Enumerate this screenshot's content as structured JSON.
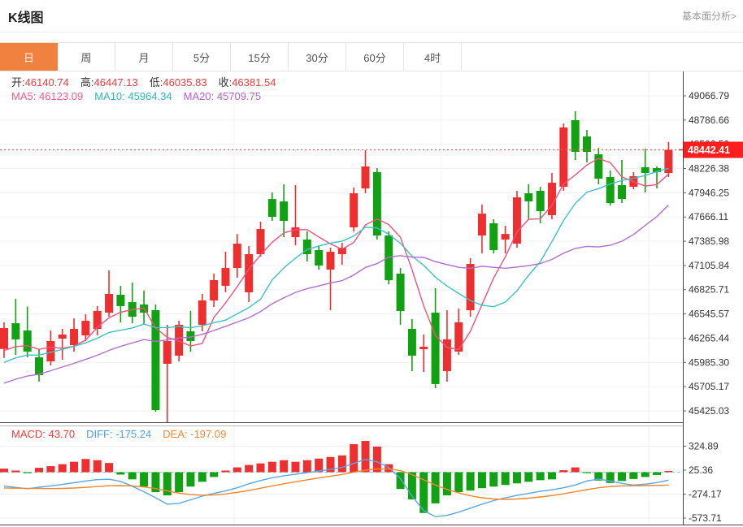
{
  "header": {
    "title": "K线图",
    "link_label": "基本面分析>"
  },
  "tabs": {
    "items": [
      "日",
      "周",
      "月",
      "5分",
      "15分",
      "30分",
      "60分",
      "4时"
    ],
    "selected_index": 0
  },
  "readout": {
    "open_label": "开:",
    "open": "46140.74",
    "high_label": "高:",
    "high": "46447.13",
    "low_label": "低:",
    "low": "46035.83",
    "close_label": "收:",
    "close": "46381.54"
  },
  "ma_legend": {
    "ma5_label": "MA5:",
    "ma5": "46123.09",
    "ma10_label": "MA10:",
    "ma10": "45964.34",
    "ma20_label": "MA20:",
    "ma20": "45709.75"
  },
  "macd_legend": {
    "macd_label": "MACD:",
    "macd": "43.70",
    "diff_label": "DIFF:",
    "diff": "-175.24",
    "dea_label": "DEA:",
    "dea": "-197.09"
  },
  "price_tag": "48442.41",
  "colors": {
    "up": "#ee2f2f",
    "down": "#12a112",
    "ma5": "#f0517e",
    "ma10": "#3bc2c8",
    "ma20": "#b06fce",
    "diff_line": "#5aa7e8",
    "dea_line": "#f2862e",
    "text_red": "#f03b3b",
    "text_blue": "#4f9ee3",
    "text_orange": "#f28a36",
    "ma5_text": "#f45c8c",
    "ma10_text": "#30b8bc",
    "ma20_text": "#b162d2",
    "tag_bg": "#ff1e1e",
    "accent": "#f0813f",
    "grid": "#f0f0f0",
    "axis": "#444444",
    "dotted_price": "#ff5050",
    "macd_zero": "#8fd3e8"
  },
  "chart_data": {
    "type": "candlestick+macd",
    "main": {
      "title": "K线图 (日)",
      "y_tick_labels": [
        "49066.79",
        "48786.66",
        "48506.52",
        "48226.38",
        "47946.25",
        "47666.11",
        "47385.98",
        "47105.84",
        "46825.71",
        "46545.57",
        "46265.44",
        "45985.30",
        "45705.17",
        "45425.03"
      ],
      "y_top_value": 49348,
      "y_bottom_value": 45294,
      "last_price": 48442.41,
      "candles_ohlc": [
        [
          46140.74,
          46447.13,
          46035.83,
          46381.54
        ],
        [
          46438,
          46720,
          46072,
          46251
        ],
        [
          46354,
          46630,
          46044,
          46110
        ],
        [
          46044,
          46138,
          45762,
          45838
        ],
        [
          45997,
          46354,
          45950,
          46232
        ],
        [
          46260,
          46373,
          46016,
          46307
        ],
        [
          46185,
          46495,
          46110,
          46373
        ],
        [
          46297,
          46542,
          46232,
          46466
        ],
        [
          46373,
          46636,
          46297,
          46580
        ],
        [
          46560,
          47048,
          46513,
          46776
        ],
        [
          46767,
          46870,
          46448,
          46636
        ],
        [
          46682,
          46907,
          46438,
          46513
        ],
        [
          46654,
          46814,
          46420,
          46560
        ],
        [
          46589,
          46654,
          45415,
          45434
        ],
        [
          45969,
          46420,
          45293,
          46232
        ],
        [
          46063,
          46466,
          45997,
          46420
        ],
        [
          46345,
          46580,
          46110,
          46232
        ],
        [
          46420,
          46776,
          46345,
          46701
        ],
        [
          46701,
          47011,
          46626,
          46936
        ],
        [
          46870,
          47264,
          46795,
          47076
        ],
        [
          47076,
          47470,
          46964,
          47358
        ],
        [
          46795,
          47330,
          46682,
          47236
        ],
        [
          47236,
          47611,
          47208,
          47527
        ],
        [
          47874,
          47949,
          47621,
          47668
        ],
        [
          47846,
          48043,
          47433,
          47621
        ],
        [
          47433,
          48034,
          47339,
          47546
        ],
        [
          47405,
          47499,
          47151,
          47236
        ],
        [
          47283,
          47330,
          47058,
          47105
        ],
        [
          47058,
          47311,
          46589,
          47264
        ],
        [
          47236,
          47368,
          47113,
          47311
        ],
        [
          47546,
          48006,
          47499,
          47940
        ],
        [
          47996,
          48438,
          47940,
          48250
        ],
        [
          48184,
          48231,
          47405,
          47452
        ],
        [
          47452,
          47499,
          46889,
          46936
        ],
        [
          47011,
          47076,
          46419,
          46579
        ],
        [
          46373,
          46485,
          45884,
          46063
        ],
        [
          46138,
          46307,
          45875,
          46166
        ],
        [
          46560,
          46842,
          45687,
          45735
        ],
        [
          45884,
          46588,
          45762,
          46251
        ],
        [
          46110,
          46607,
          46072,
          46448
        ],
        [
          46588,
          47189,
          46513,
          47123
        ],
        [
          47452,
          47809,
          47245,
          47705
        ],
        [
          47593,
          47640,
          47245,
          47283
        ],
        [
          47405,
          47564,
          47245,
          47470
        ],
        [
          47358,
          47968,
          47311,
          47893
        ],
        [
          47940,
          48043,
          47640,
          47846
        ],
        [
          47968,
          48015,
          47593,
          47733
        ],
        [
          47687,
          48175,
          47640,
          48062
        ],
        [
          48015,
          48748,
          47968,
          48701
        ],
        [
          48785,
          48888,
          48325,
          48419
        ],
        [
          48597,
          48672,
          48297,
          48419
        ],
        [
          48391,
          48466,
          48043,
          48109
        ],
        [
          48128,
          48203,
          47799,
          47827
        ],
        [
          48034,
          48325,
          47827,
          47874
        ],
        [
          48015,
          48184,
          47987,
          48137
        ],
        [
          48241,
          48456,
          47949,
          48175
        ],
        [
          48231,
          48250,
          47996,
          48184
        ],
        [
          48175,
          48532,
          48128,
          48442.41
        ]
      ],
      "ma_periods": [
        5,
        10,
        20
      ],
      "ma_seed_closes": [
        45350,
        45380,
        45420,
        45400,
        45470,
        45520,
        45560,
        45610,
        45650,
        45700,
        45730,
        45780,
        45850,
        45900,
        45980,
        46020,
        46060,
        46050,
        46100
      ]
    },
    "macd": {
      "y_tick_labels": [
        "324.89",
        "25.36",
        "-274.17",
        "-573.71"
      ],
      "hist": [
        44,
        20,
        -12,
        55,
        75,
        100,
        130,
        165,
        150,
        115,
        -30,
        -90,
        -180,
        -250,
        -290,
        -250,
        -180,
        -120,
        -60,
        20,
        60,
        90,
        110,
        130,
        150,
        130,
        150,
        170,
        190,
        210,
        350,
        390,
        320,
        100,
        -210,
        -340,
        -510,
        -390,
        -290,
        -250,
        -230,
        -200,
        -180,
        -160,
        -140,
        -120,
        -100,
        -90,
        25,
        60,
        -10,
        -105,
        -135,
        -110,
        -85,
        -60,
        -35,
        15
      ],
      "diff": [
        -175,
        -190,
        -207,
        -188,
        -172,
        -153,
        -132,
        -110,
        -93,
        -88,
        -115,
        -175,
        -245,
        -320,
        -400,
        -390,
        -345,
        -300,
        -265,
        -235,
        -195,
        -145,
        -105,
        -70,
        -45,
        -25,
        -5,
        15,
        35,
        60,
        110,
        160,
        130,
        60,
        -80,
        -300,
        -480,
        -555,
        -540,
        -500,
        -450,
        -400,
        -355,
        -320,
        -290,
        -265,
        -240,
        -220,
        -195,
        -160,
        -110,
        -85,
        -110,
        -140,
        -160,
        -150,
        -130,
        -100
      ],
      "dea": [
        -197,
        -200,
        -202,
        -204,
        -205,
        -203,
        -198,
        -190,
        -180,
        -170,
        -168,
        -172,
        -185,
        -205,
        -235,
        -262,
        -280,
        -288,
        -285,
        -272,
        -252,
        -228,
        -200,
        -172,
        -145,
        -120,
        -95,
        -72,
        -50,
        -28,
        0,
        25,
        40,
        42,
        20,
        -30,
        -95,
        -160,
        -215,
        -260,
        -295,
        -320,
        -335,
        -340,
        -335,
        -325,
        -310,
        -292,
        -270,
        -245,
        -218,
        -195,
        -180,
        -172,
        -170,
        -168,
        -165,
        -160
      ]
    }
  }
}
